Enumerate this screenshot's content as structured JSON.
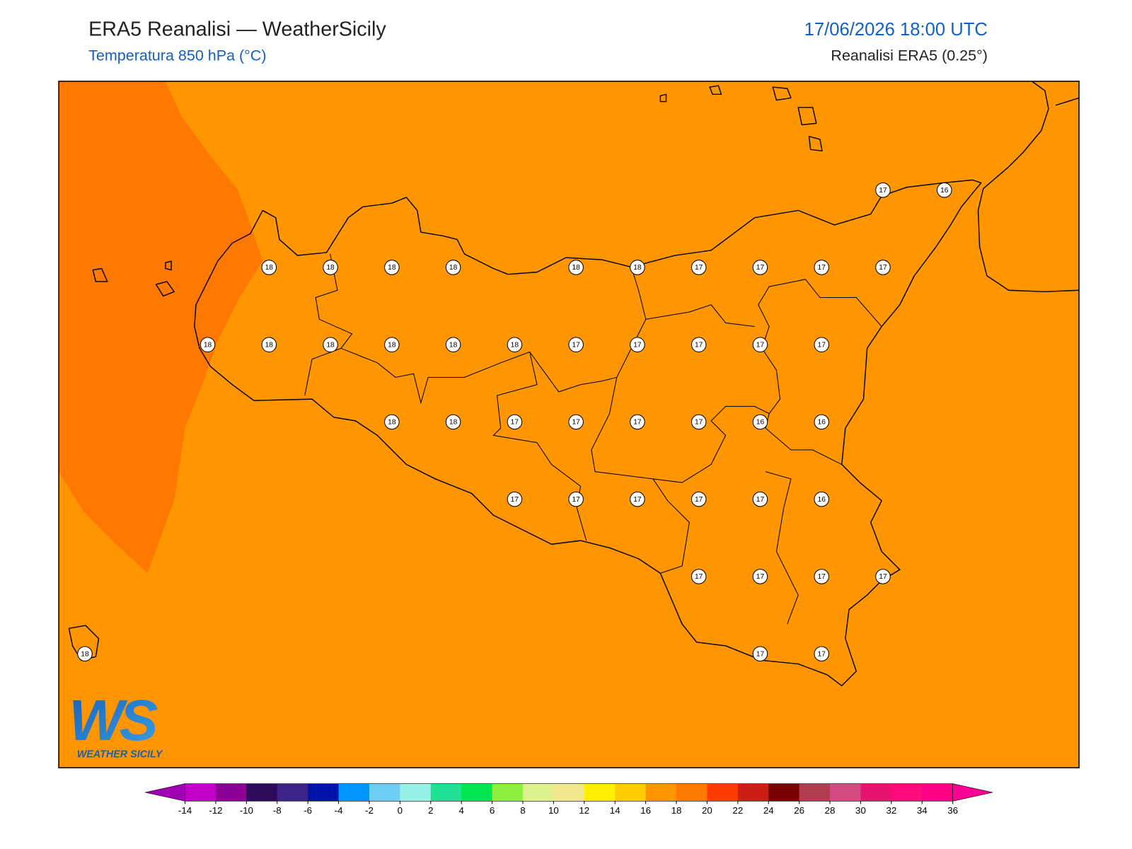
{
  "header": {
    "title": "ERA5 Reanalisi — WeatherSicily",
    "subtitle": "Temperatura 850 hPa (°C)",
    "datetime": "17/06/2026 18:00 UTC",
    "source": "Reanalisi ERA5 (0.25°)"
  },
  "map": {
    "grid_values": [
      [
        null,
        null,
        null,
        null,
        null,
        null,
        null,
        null,
        null,
        null,
        null,
        null,
        null,
        17,
        16
      ],
      [
        null,
        null,
        null,
        18,
        18,
        18,
        18,
        null,
        18,
        18,
        17,
        17,
        17,
        17,
        null
      ],
      [
        null,
        null,
        18,
        18,
        18,
        18,
        18,
        18,
        17,
        17,
        17,
        17,
        17,
        null,
        null
      ],
      [
        null,
        null,
        null,
        null,
        null,
        18,
        18,
        17,
        17,
        17,
        17,
        16,
        16,
        null,
        null
      ],
      [
        null,
        null,
        null,
        null,
        null,
        null,
        null,
        17,
        17,
        17,
        17,
        17,
        16,
        null,
        null
      ],
      [
        null,
        null,
        null,
        null,
        null,
        null,
        null,
        null,
        null,
        null,
        17,
        17,
        17,
        17,
        null
      ],
      [
        18,
        null,
        null,
        null,
        null,
        null,
        null,
        null,
        null,
        null,
        null,
        17,
        17,
        null,
        null
      ]
    ]
  },
  "colorbar": {
    "ticks": [
      -14,
      -12,
      -10,
      -8,
      -6,
      -4,
      -2,
      0,
      2,
      4,
      6,
      8,
      10,
      12,
      14,
      16,
      18,
      20,
      22,
      24,
      26,
      28,
      30,
      32,
      34,
      36
    ],
    "colors": [
      "#c000c8",
      "#8c0096",
      "#2d0a5a",
      "#3c2387",
      "#0014aa",
      "#0096ff",
      "#6ecdf5",
      "#96f0e6",
      "#1ee196",
      "#00e650",
      "#8cf03c",
      "#dcf08c",
      "#f0e68c",
      "#ffee00",
      "#ffcc00",
      "#ff9600",
      "#ff7800",
      "#ff3c00",
      "#cd1e14",
      "#780000",
      "#b43c50",
      "#d24b82",
      "#e6146e",
      "#ff0a78",
      "#ff0087"
    ],
    "under": "#a000b4",
    "over": "#ff0096"
  },
  "logo": {
    "mark": "WS",
    "text": "WEATHER SICILY"
  }
}
